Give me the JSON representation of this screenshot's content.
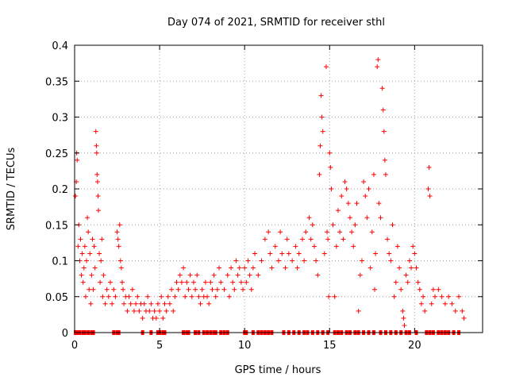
{
  "chart_data": {
    "type": "scatter",
    "title": "Day 074 of 2021, SRMTID for receiver sthl",
    "xlabel": "GPS time / hours",
    "ylabel": "SRMTID / TECUs",
    "xlim": [
      0,
      24
    ],
    "ylim": [
      0,
      0.4
    ],
    "xticks": [
      0,
      5,
      10,
      15,
      20
    ],
    "yticks": [
      0,
      0.05,
      0.1,
      0.15,
      0.2,
      0.25,
      0.3,
      0.35,
      0.4
    ],
    "xtick_labels": [
      "0",
      "5",
      "10",
      "15",
      "20"
    ],
    "ytick_labels": [
      "0",
      "0.05",
      "0.1",
      "0.15",
      "0.2",
      "0.25",
      "0.3",
      "0.35",
      "0.4"
    ],
    "grid": true,
    "series": [
      {
        "name": "SRMTID",
        "marker": "+",
        "color": "#ff0000",
        "points": [
          [
            0.05,
            0.19
          ],
          [
            0.1,
            0.21
          ],
          [
            0.12,
            0.25
          ],
          [
            0.15,
            0.24
          ],
          [
            0.2,
            0.12
          ],
          [
            0.25,
            0.15
          ],
          [
            0.3,
            0.1
          ],
          [
            0.35,
            0.13
          ],
          [
            0.4,
            0.08
          ],
          [
            0.45,
            0.11
          ],
          [
            0.5,
            0.07
          ],
          [
            0.55,
            0.09
          ],
          [
            0.6,
            0.12
          ],
          [
            0.65,
            0.05
          ],
          [
            0.7,
            0.1
          ],
          [
            0.75,
            0.16
          ],
          [
            0.8,
            0.14
          ],
          [
            0.85,
            0.06
          ],
          [
            0.9,
            0.11
          ],
          [
            0.95,
            0.04
          ],
          [
            1.0,
            0.08
          ],
          [
            1.05,
            0.13
          ],
          [
            1.1,
            0.06
          ],
          [
            1.15,
            0.12
          ],
          [
            1.2,
            0.09
          ],
          [
            1.25,
            0.28
          ],
          [
            1.28,
            0.26
          ],
          [
            1.3,
            0.25
          ],
          [
            1.32,
            0.22
          ],
          [
            1.35,
            0.21
          ],
          [
            1.38,
            0.19
          ],
          [
            1.4,
            0.17
          ],
          [
            1.45,
            0.11
          ],
          [
            1.5,
            0.07
          ],
          [
            1.55,
            0.1
          ],
          [
            1.6,
            0.13
          ],
          [
            1.65,
            0.05
          ],
          [
            1.7,
            0.08
          ],
          [
            1.8,
            0.04
          ],
          [
            1.9,
            0.06
          ],
          [
            2.0,
            0.05
          ],
          [
            2.1,
            0.07
          ],
          [
            2.2,
            0.04
          ],
          [
            2.3,
            0.06
          ],
          [
            2.4,
            0.05
          ],
          [
            2.5,
            0.14
          ],
          [
            2.55,
            0.13
          ],
          [
            2.6,
            0.12
          ],
          [
            2.65,
            0.15
          ],
          [
            2.7,
            0.1
          ],
          [
            2.75,
            0.09
          ],
          [
            2.8,
            0.07
          ],
          [
            2.85,
            0.06
          ],
          [
            2.9,
            0.04
          ],
          [
            3.0,
            0.05
          ],
          [
            3.1,
            0.03
          ],
          [
            3.2,
            0.05
          ],
          [
            3.3,
            0.04
          ],
          [
            3.4,
            0.06
          ],
          [
            3.5,
            0.03
          ],
          [
            3.6,
            0.04
          ],
          [
            3.7,
            0.05
          ],
          [
            3.8,
            0.03
          ],
          [
            3.9,
            0.04
          ],
          [
            4.0,
            0.02
          ],
          [
            4.1,
            0.04
          ],
          [
            4.2,
            0.03
          ],
          [
            4.3,
            0.05
          ],
          [
            4.4,
            0.03
          ],
          [
            4.5,
            0.04
          ],
          [
            4.6,
            0.02
          ],
          [
            4.7,
            0.03
          ],
          [
            4.8,
            0.02
          ],
          [
            4.9,
            0.04
          ],
          [
            5.0,
            0.03
          ],
          [
            5.1,
            0.05
          ],
          [
            5.2,
            0.02
          ],
          [
            5.3,
            0.04
          ],
          [
            5.4,
            0.03
          ],
          [
            5.5,
            0.05
          ],
          [
            5.6,
            0.04
          ],
          [
            5.7,
            0.06
          ],
          [
            5.8,
            0.03
          ],
          [
            5.9,
            0.05
          ],
          [
            6.0,
            0.07
          ],
          [
            6.1,
            0.06
          ],
          [
            6.2,
            0.08
          ],
          [
            6.3,
            0.07
          ],
          [
            6.4,
            0.09
          ],
          [
            6.5,
            0.05
          ],
          [
            6.6,
            0.07
          ],
          [
            6.7,
            0.06
          ],
          [
            6.8,
            0.08
          ],
          [
            6.9,
            0.05
          ],
          [
            7.0,
            0.07
          ],
          [
            7.1,
            0.06
          ],
          [
            7.2,
            0.08
          ],
          [
            7.3,
            0.05
          ],
          [
            7.4,
            0.04
          ],
          [
            7.5,
            0.06
          ],
          [
            7.6,
            0.05
          ],
          [
            7.7,
            0.07
          ],
          [
            7.8,
            0.05
          ],
          [
            7.9,
            0.04
          ],
          [
            8.0,
            0.07
          ],
          [
            8.1,
            0.06
          ],
          [
            8.2,
            0.08
          ],
          [
            8.3,
            0.05
          ],
          [
            8.4,
            0.06
          ],
          [
            8.5,
            0.09
          ],
          [
            8.6,
            0.07
          ],
          [
            8.8,
            0.06
          ],
          [
            9.0,
            0.08
          ],
          [
            9.1,
            0.05
          ],
          [
            9.2,
            0.09
          ],
          [
            9.3,
            0.07
          ],
          [
            9.4,
            0.06
          ],
          [
            9.5,
            0.1
          ],
          [
            9.6,
            0.08
          ],
          [
            9.7,
            0.09
          ],
          [
            9.8,
            0.07
          ],
          [
            9.9,
            0.06
          ],
          [
            10.0,
            0.09
          ],
          [
            10.1,
            0.07
          ],
          [
            10.2,
            0.1
          ],
          [
            10.3,
            0.08
          ],
          [
            10.4,
            0.06
          ],
          [
            10.5,
            0.09
          ],
          [
            10.6,
            0.11
          ],
          [
            10.8,
            0.08
          ],
          [
            11.0,
            0.1
          ],
          [
            11.2,
            0.13
          ],
          [
            11.4,
            0.14
          ],
          [
            11.5,
            0.11
          ],
          [
            11.6,
            0.09
          ],
          [
            11.8,
            0.12
          ],
          [
            12.0,
            0.1
          ],
          [
            12.1,
            0.14
          ],
          [
            12.2,
            0.11
          ],
          [
            12.4,
            0.09
          ],
          [
            12.5,
            0.13
          ],
          [
            12.6,
            0.11
          ],
          [
            12.8,
            0.1
          ],
          [
            13.0,
            0.12
          ],
          [
            13.1,
            0.09
          ],
          [
            13.2,
            0.11
          ],
          [
            13.4,
            0.13
          ],
          [
            13.5,
            0.1
          ],
          [
            13.6,
            0.14
          ],
          [
            13.8,
            0.16
          ],
          [
            13.9,
            0.13
          ],
          [
            14.0,
            0.15
          ],
          [
            14.1,
            0.12
          ],
          [
            14.2,
            0.1
          ],
          [
            14.3,
            0.08
          ],
          [
            14.4,
            0.22
          ],
          [
            14.45,
            0.26
          ],
          [
            14.5,
            0.33
          ],
          [
            14.55,
            0.3
          ],
          [
            14.6,
            0.28
          ],
          [
            14.7,
            0.11
          ],
          [
            14.8,
            0.37
          ],
          [
            14.85,
            0.14
          ],
          [
            14.9,
            0.13
          ],
          [
            14.95,
            0.05
          ],
          [
            15.0,
            0.25
          ],
          [
            15.05,
            0.23
          ],
          [
            15.1,
            0.2
          ],
          [
            15.2,
            0.15
          ],
          [
            15.3,
            0.05
          ],
          [
            15.4,
            0.12
          ],
          [
            15.5,
            0.17
          ],
          [
            15.6,
            0.14
          ],
          [
            15.7,
            0.19
          ],
          [
            15.8,
            0.13
          ],
          [
            15.9,
            0.21
          ],
          [
            16.0,
            0.2
          ],
          [
            16.1,
            0.18
          ],
          [
            16.2,
            0.16
          ],
          [
            16.3,
            0.14
          ],
          [
            16.4,
            0.12
          ],
          [
            16.5,
            0.15
          ],
          [
            16.6,
            0.18
          ],
          [
            16.7,
            0.03
          ],
          [
            16.8,
            0.08
          ],
          [
            16.9,
            0.1
          ],
          [
            17.0,
            0.21
          ],
          [
            17.1,
            0.19
          ],
          [
            17.2,
            0.16
          ],
          [
            17.3,
            0.2
          ],
          [
            17.4,
            0.09
          ],
          [
            17.5,
            0.14
          ],
          [
            17.6,
            0.22
          ],
          [
            17.65,
            0.06
          ],
          [
            17.7,
            0.11
          ],
          [
            17.8,
            0.37
          ],
          [
            17.85,
            0.38
          ],
          [
            17.9,
            0.18
          ],
          [
            18.0,
            0.16
          ],
          [
            18.1,
            0.34
          ],
          [
            18.15,
            0.31
          ],
          [
            18.2,
            0.28
          ],
          [
            18.25,
            0.24
          ],
          [
            18.3,
            0.22
          ],
          [
            18.4,
            0.13
          ],
          [
            18.5,
            0.11
          ],
          [
            18.6,
            0.1
          ],
          [
            18.7,
            0.15
          ],
          [
            18.8,
            0.05
          ],
          [
            18.9,
            0.07
          ],
          [
            19.0,
            0.12
          ],
          [
            19.1,
            0.09
          ],
          [
            19.2,
            0.06
          ],
          [
            19.3,
            0.03
          ],
          [
            19.35,
            0.02
          ],
          [
            19.4,
            0.01
          ],
          [
            19.5,
            0.08
          ],
          [
            19.6,
            0.07
          ],
          [
            19.7,
            0.1
          ],
          [
            19.8,
            0.09
          ],
          [
            19.9,
            0.12
          ],
          [
            20.0,
            0.11
          ],
          [
            20.1,
            0.09
          ],
          [
            20.2,
            0.07
          ],
          [
            20.3,
            0.06
          ],
          [
            20.4,
            0.04
          ],
          [
            20.5,
            0.05
          ],
          [
            20.6,
            0.03
          ],
          [
            20.8,
            0.2
          ],
          [
            20.85,
            0.23
          ],
          [
            20.9,
            0.19
          ],
          [
            21.0,
            0.04
          ],
          [
            21.1,
            0.06
          ],
          [
            21.2,
            0.05
          ],
          [
            21.4,
            0.06
          ],
          [
            21.6,
            0.05
          ],
          [
            21.8,
            0.04
          ],
          [
            22.0,
            0.05
          ],
          [
            22.2,
            0.04
          ],
          [
            22.4,
            0.03
          ],
          [
            22.6,
            0.05
          ],
          [
            22.8,
            0.03
          ],
          [
            22.9,
            0.02
          ]
        ],
        "zero_points": [
          0.05,
          0.2,
          0.3,
          0.5,
          0.6,
          0.8,
          1.0,
          1.1,
          2.3,
          2.5,
          2.6,
          4.0,
          4.5,
          4.9,
          5.0,
          5.2,
          5.3,
          6.4,
          6.6,
          6.7,
          7.1,
          7.3,
          7.6,
          7.8,
          8.0,
          8.2,
          8.3,
          8.6,
          8.8,
          9.0,
          10.0,
          10.1,
          10.5,
          10.8,
          11.0,
          11.2,
          11.4,
          11.6,
          12.3,
          12.6,
          12.9,
          13.2,
          13.5,
          13.7,
          14.0,
          14.3,
          14.6,
          14.9,
          15.3,
          15.5,
          15.7,
          16.0,
          16.2,
          16.5,
          16.7,
          17.0,
          17.3,
          17.6,
          18.0,
          18.3,
          18.6,
          18.9,
          19.2,
          19.5,
          19.7,
          20.1,
          20.7,
          20.9,
          21.1,
          21.4,
          21.6,
          21.8,
          22.0,
          22.3,
          22.6
        ]
      }
    ]
  }
}
